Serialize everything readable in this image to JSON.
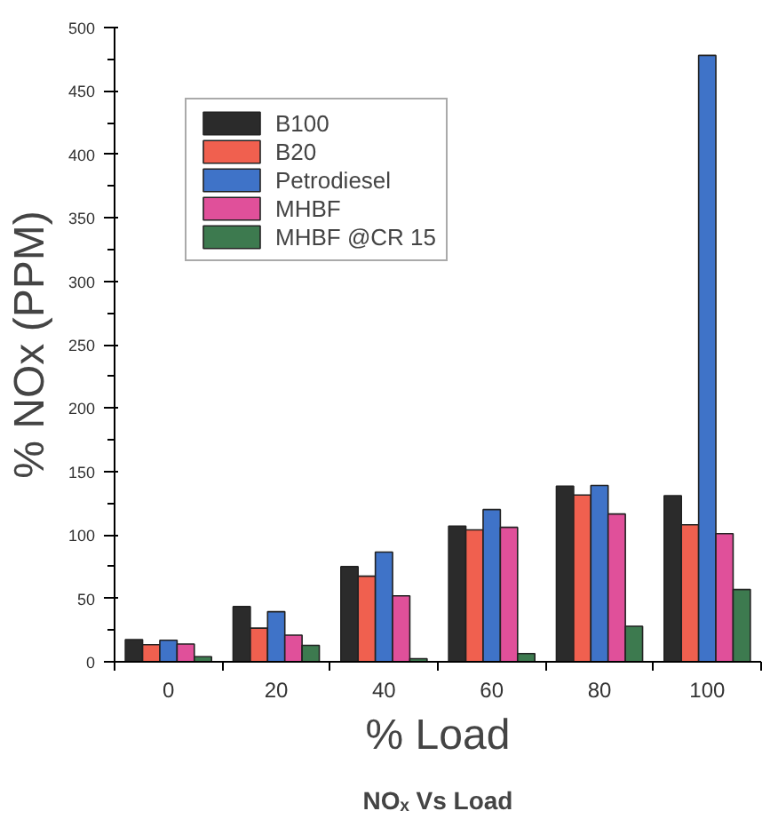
{
  "chart_data": {
    "type": "bar",
    "title": "NOₓ Vs Load",
    "xlabel": "% Load",
    "ylabel": "% NOx (PPM)",
    "categories": [
      "0",
      "20",
      "40",
      "60",
      "80",
      "100"
    ],
    "series": [
      {
        "name": "B100",
        "color": "#2b2b2b",
        "values": [
          17.5,
          43.5,
          75,
          107,
          138.5,
          131
        ]
      },
      {
        "name": "B20",
        "color": "#f0604f",
        "values": [
          13.5,
          26.5,
          67.5,
          104,
          131.5,
          108
        ]
      },
      {
        "name": "Petrodiesel",
        "color": "#3f73c8",
        "values": [
          17,
          39.5,
          86.5,
          120,
          139,
          478
        ]
      },
      {
        "name": "MHBF",
        "color": "#e0509a",
        "values": [
          14,
          21,
          52,
          106,
          116.5,
          101
        ]
      },
      {
        "name": "MHBF @CR 15",
        "color": "#3d7a4f",
        "values": [
          4,
          13,
          2.5,
          6.5,
          28,
          57
        ]
      }
    ],
    "ylim": [
      0,
      500
    ],
    "yticks": [
      0,
      50,
      100,
      150,
      200,
      250,
      300,
      350,
      400,
      450,
      500
    ],
    "grid": false,
    "legend": "top left"
  }
}
